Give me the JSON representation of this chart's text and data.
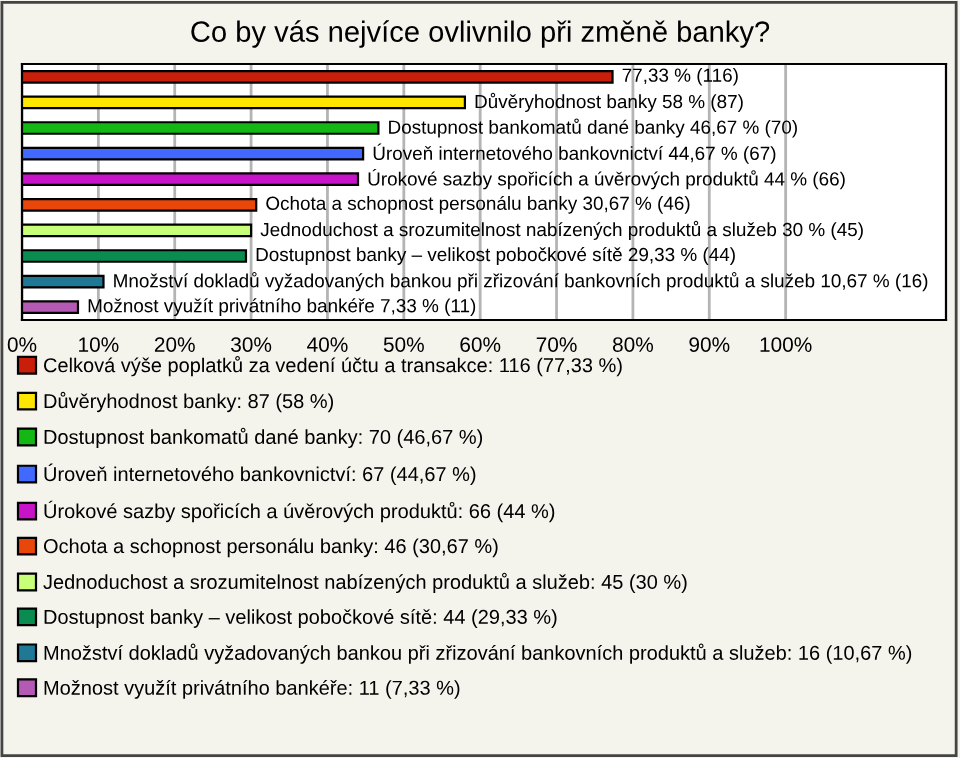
{
  "chart_data": {
    "type": "bar",
    "orientation": "horizontal",
    "title": "Co by vás nejvíce ovlivnilo při změně banky?",
    "categories": [
      null,
      null,
      null,
      null,
      null,
      null,
      null,
      null,
      null,
      null
    ],
    "series": [
      {
        "name": "Celková výše poplatků za vedení účtu a transakce: 116 (77,33 %)",
        "color": "#c81e0a",
        "values": [
          77.33,
          null,
          null,
          null,
          null,
          null,
          null,
          null,
          null,
          null
        ],
        "value_labels": [
          "77,33 % (116)",
          null,
          null,
          null,
          null,
          null,
          null,
          null,
          null,
          null
        ]
      },
      {
        "name": "Důvěryhodnost banky: 87 (58 %)",
        "color": "#ffe600",
        "values": [
          null,
          58,
          null,
          null,
          null,
          null,
          null,
          null,
          null,
          null
        ],
        "value_labels": [
          null,
          "Důvěryhodnost banky 58 % (87)",
          null,
          null,
          null,
          null,
          null,
          null,
          null,
          null
        ]
      },
      {
        "name": "Dostupnost bankomatů dané banky: 70 (46,67 %)",
        "color": "#14b814",
        "values": [
          null,
          null,
          46.67,
          null,
          null,
          null,
          null,
          null,
          null,
          null
        ],
        "value_labels": [
          null,
          null,
          "Dostupnost bankomatů dané banky 46,67 % (70)",
          null,
          null,
          null,
          null,
          null,
          null,
          null
        ]
      },
      {
        "name": "Úroveň internetového bankovnictví: 67 (44,67 %)",
        "color": "#4169ff",
        "values": [
          null,
          null,
          null,
          44.67,
          null,
          null,
          null,
          null,
          null,
          null
        ],
        "value_labels": [
          null,
          null,
          null,
          "Úroveň internetového bankovnictví 44,67 % (67)",
          null,
          null,
          null,
          null,
          null,
          null
        ]
      },
      {
        "name": "Úrokové sazby spořicích a úvěrových produktů: 66 (44 %)",
        "color": "#c814c8",
        "values": [
          null,
          null,
          null,
          null,
          44,
          null,
          null,
          null,
          null,
          null
        ],
        "value_labels": [
          null,
          null,
          null,
          null,
          "Úrokové sazby spořicích a úvěrových produktů 44 % (66)",
          null,
          null,
          null,
          null,
          null
        ]
      },
      {
        "name": "Ochota a schopnost personálu banky: 46 (30,67 %)",
        "color": "#e8460a",
        "values": [
          null,
          null,
          null,
          null,
          null,
          30.67,
          null,
          null,
          null,
          null
        ],
        "value_labels": [
          null,
          null,
          null,
          null,
          null,
          "Ochota a schopnost personálu banky 30,67 % (46)",
          null,
          null,
          null,
          null
        ]
      },
      {
        "name": "Jednoduchost a srozumitelnost nabízených produktů a služeb: 45 (30 %)",
        "color": "#c8ff78",
        "values": [
          null,
          null,
          null,
          null,
          null,
          null,
          30,
          null,
          null,
          null
        ],
        "value_labels": [
          null,
          null,
          null,
          null,
          null,
          null,
          "Jednoduchost a srozumitelnost nabízených produktů a služeb 30 % (45)",
          null,
          null,
          null
        ]
      },
      {
        "name": "Dostupnost banky – velikost pobočkové sítě: 44 (29,33 %)",
        "color": "#0a8c50",
        "values": [
          null,
          null,
          null,
          null,
          null,
          null,
          null,
          29.33,
          null,
          null
        ],
        "value_labels": [
          null,
          null,
          null,
          null,
          null,
          null,
          null,
          "Dostupnost banky – velikost pobočkové sítě 29,33 % (44)",
          null,
          null
        ]
      },
      {
        "name": "Množství dokladů vyžadovaných bankou při zřizování bankovních produktů a služeb: 16 (10,67 %)",
        "color": "#1e7896",
        "values": [
          null,
          null,
          null,
          null,
          null,
          null,
          null,
          null,
          10.67,
          null
        ],
        "value_labels": [
          null,
          null,
          null,
          null,
          null,
          null,
          null,
          null,
          "Množství dokladů vyžadovaných bankou při zřizování bankovních produktů a služeb 10,67 % (16)",
          null
        ]
      },
      {
        "name": "Možnost využít privátního bankéře: 11 (7,33 %)",
        "color": "#b45ab4",
        "values": [
          null,
          null,
          null,
          null,
          null,
          null,
          null,
          null,
          null,
          7.33
        ],
        "value_labels": [
          null,
          null,
          null,
          null,
          null,
          null,
          null,
          null,
          null,
          "Možnost využít privátního bankéře 7,33 % (11)"
        ]
      }
    ],
    "xlim": [
      0,
      121
    ],
    "xticks": [
      {
        "value": 0,
        "label": "0%"
      },
      {
        "value": 10,
        "label": "10%"
      },
      {
        "value": 20,
        "label": "20%"
      },
      {
        "value": 30,
        "label": "30%"
      },
      {
        "value": 40,
        "label": "40%"
      },
      {
        "value": 50,
        "label": "50%"
      },
      {
        "value": 60,
        "label": "60%"
      },
      {
        "value": 70,
        "label": "70%"
      },
      {
        "value": 80,
        "label": "80%"
      },
      {
        "value": 90,
        "label": "90%"
      },
      {
        "value": 100,
        "label": "100%"
      }
    ],
    "grid": "x",
    "legend": "bottom"
  }
}
